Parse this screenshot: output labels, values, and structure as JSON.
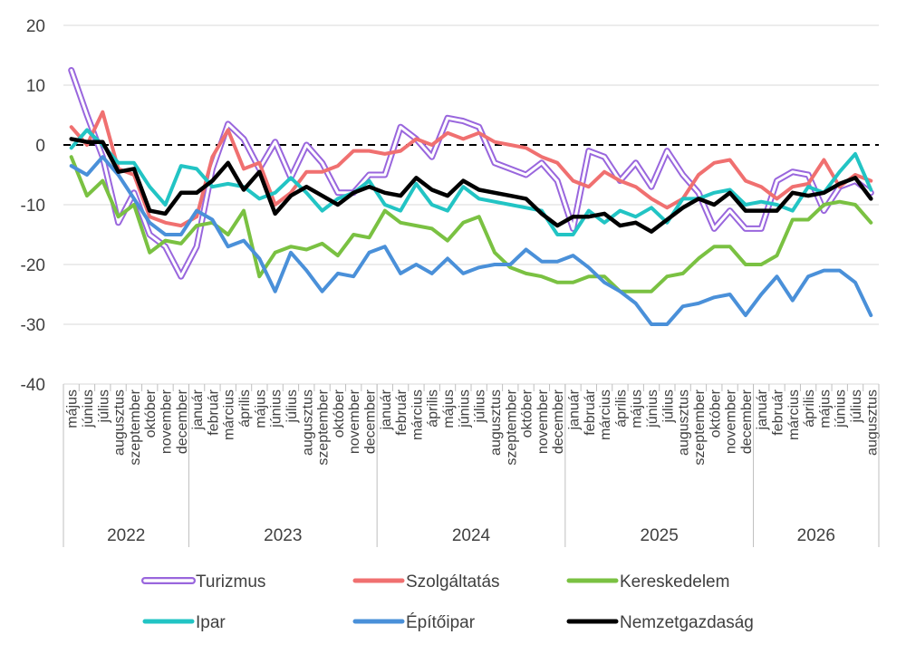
{
  "chart_data": {
    "type": "line",
    "title": "",
    "xlabel": "",
    "ylabel": "",
    "ylim": [
      -40,
      20
    ],
    "yticks": [
      20,
      10,
      0,
      -10,
      -20,
      -30,
      -40
    ],
    "grid": "horizontal",
    "legend_position": "bottom",
    "zero_line": "dashed",
    "months": [
      "május",
      "június",
      "július",
      "augusztus",
      "szeptember",
      "október",
      "november",
      "december",
      "január",
      "február",
      "március",
      "április",
      "május",
      "június",
      "július",
      "augusztus",
      "szeptember",
      "október",
      "november",
      "december",
      "január",
      "február",
      "március",
      "április",
      "május",
      "június",
      "július",
      "augusztus",
      "szeptember",
      "október",
      "november",
      "december",
      "január",
      "február",
      "március",
      "április",
      "május",
      "június",
      "július",
      "augusztus",
      "szeptember",
      "október",
      "november",
      "december",
      "január",
      "február",
      "március",
      "április",
      "május",
      "június",
      "július",
      "augusztus"
    ],
    "years": [
      {
        "label": "2022",
        "count": 8
      },
      {
        "label": "2023",
        "count": 12
      },
      {
        "label": "2024",
        "count": 12
      },
      {
        "label": "2025",
        "count": 12
      },
      {
        "label": "2026",
        "count": 8
      }
    ],
    "series": [
      {
        "name": "Turizmus",
        "color": "#9966dd",
        "style": "double",
        "values": [
          12.5,
          5,
          -2,
          -13,
          -8,
          -15,
          -17,
          -22,
          -17,
          -4,
          3.5,
          1,
          -4,
          0.5,
          -5.5,
          0,
          -3,
          -8,
          -8,
          -5,
          -5,
          3,
          1,
          -2,
          4.5,
          4,
          3,
          -3,
          -4,
          -5,
          -3,
          -6,
          -14,
          -1,
          -2,
          -6,
          -3,
          -7,
          -1,
          -5,
          -8,
          -14,
          -11,
          -14,
          -14,
          -6,
          -4.5,
          -5,
          -11,
          -7,
          -6,
          -8
        ]
      },
      {
        "name": "Szolgáltatás",
        "color": "#f07070",
        "style": "solid",
        "values": [
          3,
          0,
          5.5,
          -4,
          -5,
          -12,
          -13,
          -13.5,
          -12,
          -2,
          2.5,
          -4,
          -3,
          -10,
          -8,
          -4.5,
          -4.5,
          -3.5,
          -1,
          -1,
          -1.5,
          -1,
          1,
          0,
          2,
          1,
          2,
          0.5,
          0,
          -0.5,
          -2,
          -3,
          -6,
          -7,
          -4.5,
          -6,
          -7,
          -9,
          -10.5,
          -9,
          -5,
          -3,
          -2.5,
          -6,
          -7,
          -9,
          -7,
          -6.5,
          -2.5,
          -7,
          -5,
          -6
        ]
      },
      {
        "name": "Kereskedelem",
        "color": "#7ac142",
        "style": "solid",
        "values": [
          -2,
          -8.5,
          -6,
          -12,
          -10,
          -18,
          -16,
          -16.5,
          -13.5,
          -13,
          -15,
          -11,
          -22,
          -18,
          -17,
          -17.5,
          -16.5,
          -18.5,
          -15,
          -15.5,
          -11,
          -13,
          -13.5,
          -14,
          -16,
          -13,
          -12,
          -18,
          -20.5,
          -21.5,
          -22,
          -23,
          -23,
          -22,
          -22,
          -24.5,
          -24.5,
          -24.5,
          -22,
          -21.5,
          -19,
          -17,
          -17,
          -20,
          -20,
          -18.5,
          -12.5,
          -12.5,
          -10,
          -9.5,
          -10,
          -13
        ]
      },
      {
        "name": "Ipar",
        "color": "#22c4c4",
        "style": "solid",
        "values": [
          -0.5,
          2.5,
          0,
          -3,
          -3,
          -7,
          -10,
          -3.5,
          -4,
          -7,
          -6.5,
          -7,
          -9,
          -8,
          -5.5,
          -8,
          -11,
          -9,
          -8,
          -6,
          -10,
          -11,
          -6.5,
          -10,
          -11,
          -7,
          -9,
          -9.5,
          -10,
          -10.5,
          -11,
          -15,
          -15,
          -11,
          -13,
          -11,
          -12,
          -10.5,
          -13,
          -9,
          -9,
          -8,
          -7.5,
          -10,
          -9.5,
          -10,
          -11,
          -7,
          -8,
          -4.5,
          -1.5,
          -7.5
        ]
      },
      {
        "name": "Építőipar",
        "color": "#4a90d9",
        "style": "solid",
        "values": [
          -3.5,
          -5,
          -2,
          -5,
          -9,
          -13,
          -15,
          -15,
          -11,
          -12.5,
          -17,
          -16,
          -19,
          -24.5,
          -18,
          -21,
          -24.5,
          -21.5,
          -22,
          -18,
          -17,
          -21.5,
          -20,
          -21.5,
          -19,
          -21.5,
          -20.5,
          -20,
          -20,
          -17.5,
          -19.5,
          -19.5,
          -18.5,
          -20.5,
          -23,
          -24.5,
          -26.5,
          -30,
          -30,
          -27,
          -26.5,
          -25.5,
          -25,
          -28.5,
          -25,
          -22,
          -26,
          -22,
          -21,
          -21,
          -23,
          -28.5
        ]
      },
      {
        "name": "Nemzetgazdaság",
        "color": "#000000",
        "style": "solid",
        "values": [
          1,
          0.5,
          0.5,
          -4.5,
          -4,
          -11,
          -11.5,
          -8,
          -8,
          -6,
          -3,
          -7.5,
          -4.5,
          -11.5,
          -8.5,
          -7,
          -8.5,
          -10,
          -8,
          -7,
          -8,
          -8.5,
          -5.5,
          -7.5,
          -8.5,
          -6,
          -7.5,
          -8,
          -8.5,
          -9,
          -11.5,
          -13.5,
          -12,
          -12,
          -11.5,
          -13.5,
          -13,
          -14.5,
          -12.5,
          -10.5,
          -9,
          -10,
          -8,
          -11,
          -11,
          -11,
          -8,
          -8.5,
          -8,
          -6.5,
          -5.5,
          -9
        ]
      }
    ]
  }
}
